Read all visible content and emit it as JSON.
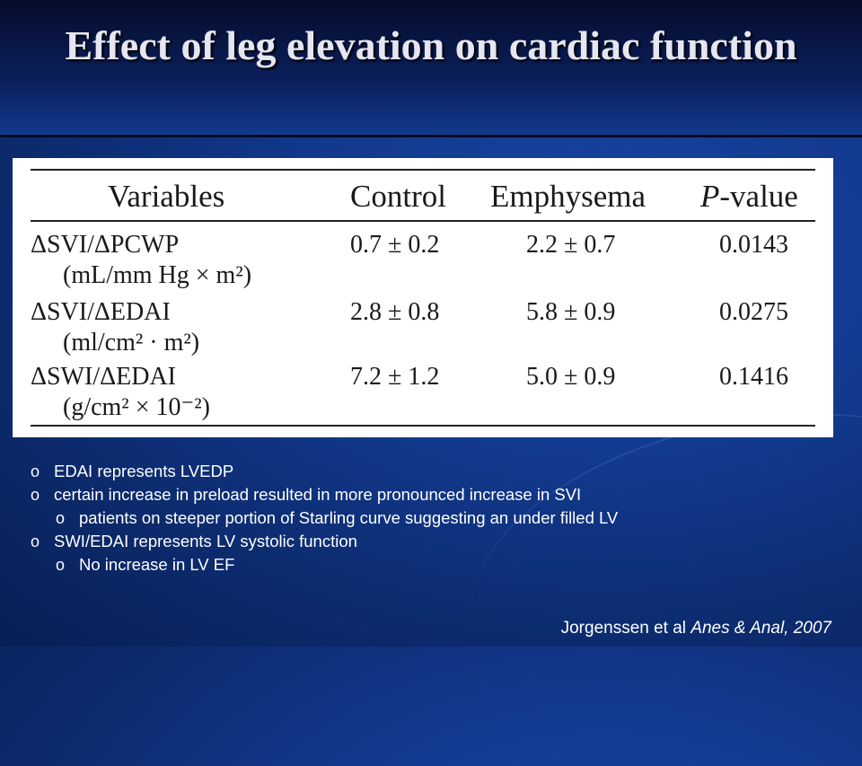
{
  "slide": {
    "title": "Effect of leg elevation on cardiac function"
  },
  "table": {
    "headers": [
      "Variables",
      "Control",
      "Emphysema",
      "-value"
    ],
    "header_p": "P",
    "rows": [
      {
        "variable": "ΔSVI/ΔPCWP",
        "units": "(mL/mm Hg × m²)",
        "control": "0.7 ± 0.2",
        "emphysema": "2.2 ± 0.7",
        "p_value": "0.0143"
      },
      {
        "variable": "ΔSVI/ΔEDAI",
        "units": "(ml/cm² · m²)",
        "control": "2.8 ± 0.8",
        "emphysema": "5.8 ± 0.9",
        "p_value": "0.0275"
      },
      {
        "variable": "ΔSWI/ΔEDAI",
        "units": "(g/cm² × 10⁻²)",
        "control": "7.2 ± 1.2",
        "emphysema": "5.0 ± 0.9",
        "p_value": "0.1416"
      }
    ]
  },
  "notes": {
    "bullet_marker": "o",
    "items": [
      {
        "level": 1,
        "text": "EDAI represents LVEDP"
      },
      {
        "level": 1,
        "text": "certain increase in preload resulted in more pronounced increase in SVI"
      },
      {
        "level": 2,
        "text": "patients on steeper portion of Starling curve suggesting an under filled LV"
      },
      {
        "level": 1,
        "text": "SWI/EDAI represents LV systolic function"
      },
      {
        "level": 2,
        "text": "No increase in LV EF"
      }
    ]
  },
  "citation": {
    "authors": "Jorgenssen et al ",
    "journal": "Anes & Anal, 2007"
  }
}
